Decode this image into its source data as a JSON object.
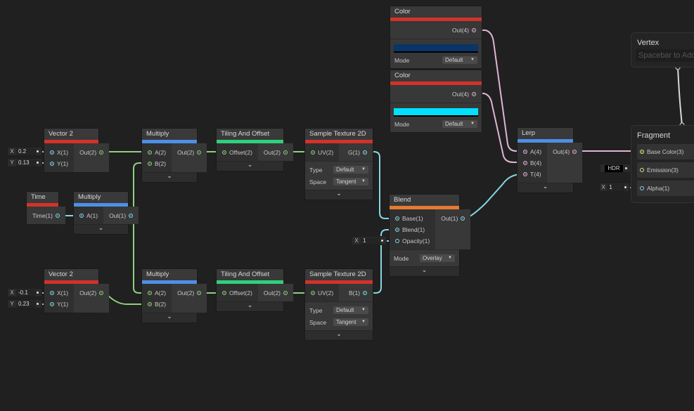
{
  "nodes": [
    {
      "id": "vector2_top",
      "title": "Vector 2",
      "accent": "#d3322a",
      "inputs": [
        {
          "label": "X(1)",
          "type": "float"
        },
        {
          "label": "Y(1)",
          "type": "float"
        }
      ],
      "outputs": [
        {
          "label": "Out(2)",
          "type": "vec2"
        }
      ],
      "controls": [],
      "collapsible": false
    },
    {
      "id": "time",
      "title": "Time",
      "accent": "#d3322a",
      "inputs": [],
      "outputs": [
        {
          "label": "Time(1)",
          "type": "float"
        }
      ],
      "controls": [],
      "collapsible": false
    },
    {
      "id": "multiply_small",
      "title": "Multiply",
      "accent": "#4d8fe6",
      "inputs": [
        {
          "label": "A(1)",
          "type": "float"
        }
      ],
      "outputs": [
        {
          "label": "Out(1)",
          "type": "float"
        }
      ],
      "controls": [],
      "collapsible": true
    },
    {
      "id": "multiply_top",
      "title": "Multiply",
      "accent": "#4d8fe6",
      "inputs": [
        {
          "label": "A(2)",
          "type": "vec2"
        },
        {
          "label": "B(2)",
          "type": "vec2"
        }
      ],
      "outputs": [
        {
          "label": "Out(2)",
          "type": "vec2"
        }
      ],
      "controls": [],
      "collapsible": true
    },
    {
      "id": "tiling_top",
      "title": "Tiling And Offset",
      "accent": "#2fd07c",
      "inputs": [
        {
          "label": "Offset(2)",
          "type": "vec2"
        }
      ],
      "outputs": [
        {
          "label": "Out(2)",
          "type": "vec2"
        }
      ],
      "controls": [],
      "collapsible": true
    },
    {
      "id": "sample_top",
      "title": "Sample Texture 2D",
      "accent": "#d3322a",
      "inputs": [
        {
          "label": "UV(2)",
          "type": "vec2"
        }
      ],
      "outputs": [
        {
          "label": "G(1)",
          "type": "float"
        }
      ],
      "controls": [
        {
          "label": "Type",
          "value": "Default"
        },
        {
          "label": "Space",
          "value": "Tangent"
        }
      ],
      "collapsible": true
    },
    {
      "id": "vector2_bottom",
      "title": "Vector 2",
      "accent": "#d3322a",
      "inputs": [
        {
          "label": "X(1)",
          "type": "float"
        },
        {
          "label": "Y(1)",
          "type": "float"
        }
      ],
      "outputs": [
        {
          "label": "Out(2)",
          "type": "vec2"
        }
      ],
      "controls": [],
      "collapsible": false
    },
    {
      "id": "multiply_bottom",
      "title": "Multiply",
      "accent": "#4d8fe6",
      "inputs": [
        {
          "label": "A(2)",
          "type": "vec2"
        },
        {
          "label": "B(2)",
          "type": "vec2"
        }
      ],
      "outputs": [
        {
          "label": "Out(2)",
          "type": "vec2"
        }
      ],
      "controls": [],
      "collapsible": true
    },
    {
      "id": "tiling_bottom",
      "title": "Tiling And Offset",
      "accent": "#2fd07c",
      "inputs": [
        {
          "label": "Offset(2)",
          "type": "vec2"
        }
      ],
      "outputs": [
        {
          "label": "Out(2)",
          "type": "vec2"
        }
      ],
      "controls": [],
      "collapsible": true
    },
    {
      "id": "sample_bottom",
      "title": "Sample Texture 2D",
      "accent": "#d3322a",
      "inputs": [
        {
          "label": "UV(2)",
          "type": "vec2"
        }
      ],
      "outputs": [
        {
          "label": "B(1)",
          "type": "float"
        }
      ],
      "controls": [
        {
          "label": "Type",
          "value": "Default"
        },
        {
          "label": "Space",
          "value": "Tangent"
        }
      ],
      "collapsible": true
    },
    {
      "id": "color_dark",
      "title": "Color",
      "accent": "#d3322a",
      "inputs": [],
      "outputs": [
        {
          "label": "Out(4)",
          "type": "vec4"
        }
      ],
      "swatch": "#0a3566",
      "controls": [
        {
          "label": "Mode",
          "value": "Default"
        }
      ],
      "collapsible": false
    },
    {
      "id": "color_cyan",
      "title": "Color",
      "accent": "#d3322a",
      "inputs": [],
      "outputs": [
        {
          "label": "Out(4)",
          "type": "vec4"
        }
      ],
      "swatch": "#00e1ff",
      "controls": [
        {
          "label": "Mode",
          "value": "Default"
        }
      ],
      "collapsible": false
    },
    {
      "id": "blend",
      "title": "Blend",
      "accent": "#e67a30",
      "inputs": [
        {
          "label": "Base(1)",
          "type": "float"
        },
        {
          "label": "Blend(1)",
          "type": "float"
        },
        {
          "label": "Opacity(1)",
          "type": "float",
          "hollow": true
        }
      ],
      "outputs": [
        {
          "label": "Out(1)",
          "type": "float"
        }
      ],
      "controls": [
        {
          "label": "Mode",
          "value": "Overlay"
        }
      ],
      "collapsible": true
    },
    {
      "id": "lerp",
      "title": "Lerp",
      "accent": "#4d8fe6",
      "inputs": [
        {
          "label": "A(4)",
          "type": "vec4"
        },
        {
          "label": "B(4)",
          "type": "vec4"
        },
        {
          "label": "T(4)",
          "type": "vec4"
        }
      ],
      "outputs": [
        {
          "label": "Out(4)",
          "type": "vec4"
        }
      ],
      "controls": [],
      "collapsible": true
    }
  ],
  "inline_fields": [
    {
      "id": "v2top_x",
      "axis": "X",
      "value": "0.2"
    },
    {
      "id": "v2top_y",
      "axis": "Y",
      "value": "0.13"
    },
    {
      "id": "v2bot_x",
      "axis": "X",
      "value": "-0.1"
    },
    {
      "id": "v2bot_y",
      "axis": "Y",
      "value": "0.23"
    },
    {
      "id": "blend_opacity",
      "axis": "X",
      "value": "1"
    },
    {
      "id": "frag_alpha",
      "axis": "X",
      "value": "1"
    },
    {
      "id": "frag_emission",
      "axis": "",
      "value": "HDR"
    }
  ],
  "vertex": {
    "title": "Vertex",
    "placeholder": "Spacebar to Add Node"
  },
  "fragment": {
    "title": "Fragment",
    "blocks": [
      {
        "label": "Base Color(3)",
        "type": "vec3"
      },
      {
        "label": "Emission(3)",
        "type": "vec3",
        "hollow": true
      },
      {
        "label": "Alpha(1)",
        "type": "float",
        "hollow": true
      }
    ]
  },
  "type_colors": {
    "float": "#84d8e0",
    "vec2": "#8fd080",
    "vec3": "#e6e68a",
    "vec4": "#e0b4d6"
  },
  "collapse_icon": "chevron-down-icon"
}
